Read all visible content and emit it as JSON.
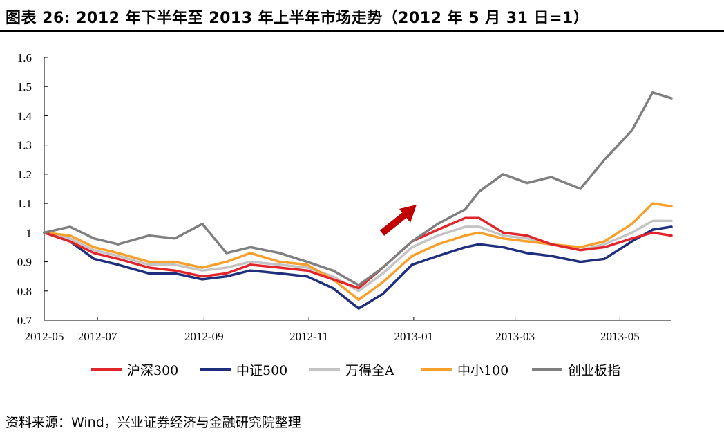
{
  "title": "图表 26: 2012 年下半年至 2013 年上半年市场走势（2012 年 5 月 31 日=1）",
  "source": "资料来源：Wind，兴业证券经济与金融研究院整理",
  "chart_data": {
    "type": "line",
    "ylim": [
      0.7,
      1.6
    ],
    "yticks": [
      "0.7",
      "0.8",
      "0.9",
      "1",
      "1.1",
      "1.2",
      "1.3",
      "1.4",
      "1.5",
      "1.6"
    ],
    "xticks": [
      "2012-05",
      "2012-07",
      "2012-09",
      "2012-11",
      "2013-01",
      "2013-03",
      "2013-05"
    ],
    "grid": false,
    "legend": "bottom",
    "annotation": "red-up-arrow",
    "series": [
      {
        "name": "沪深300",
        "color": "#e0262b",
        "points": [
          [
            "2012-05-31",
            1.0
          ],
          [
            "2012-06-15",
            0.97
          ],
          [
            "2012-06-29",
            0.93
          ],
          [
            "2012-07-13",
            0.91
          ],
          [
            "2012-07-31",
            0.88
          ],
          [
            "2012-08-15",
            0.87
          ],
          [
            "2012-08-31",
            0.85
          ],
          [
            "2012-09-14",
            0.86
          ],
          [
            "2012-09-28",
            0.89
          ],
          [
            "2012-10-15",
            0.88
          ],
          [
            "2012-10-31",
            0.87
          ],
          [
            "2012-11-15",
            0.84
          ],
          [
            "2012-11-30",
            0.81
          ],
          [
            "2012-12-14",
            0.88
          ],
          [
            "2012-12-31",
            0.97
          ],
          [
            "2013-01-15",
            1.01
          ],
          [
            "2013-01-31",
            1.05
          ],
          [
            "2013-02-08",
            1.05
          ],
          [
            "2013-02-22",
            1.0
          ],
          [
            "2013-03-08",
            0.99
          ],
          [
            "2013-03-22",
            0.96
          ],
          [
            "2013-04-08",
            0.94
          ],
          [
            "2013-04-22",
            0.95
          ],
          [
            "2013-05-08",
            0.98
          ],
          [
            "2013-05-20",
            1.0
          ],
          [
            "2013-05-31",
            0.99
          ]
        ]
      },
      {
        "name": "中证500",
        "color": "#1f2f7e",
        "points": [
          [
            "2012-05-31",
            1.0
          ],
          [
            "2012-06-15",
            0.97
          ],
          [
            "2012-06-29",
            0.91
          ],
          [
            "2012-07-13",
            0.89
          ],
          [
            "2012-07-31",
            0.86
          ],
          [
            "2012-08-15",
            0.86
          ],
          [
            "2012-08-31",
            0.84
          ],
          [
            "2012-09-14",
            0.85
          ],
          [
            "2012-09-28",
            0.87
          ],
          [
            "2012-10-15",
            0.86
          ],
          [
            "2012-10-31",
            0.85
          ],
          [
            "2012-11-15",
            0.81
          ],
          [
            "2012-11-30",
            0.74
          ],
          [
            "2012-12-14",
            0.79
          ],
          [
            "2012-12-31",
            0.89
          ],
          [
            "2013-01-15",
            0.92
          ],
          [
            "2013-01-31",
            0.95
          ],
          [
            "2013-02-08",
            0.96
          ],
          [
            "2013-02-22",
            0.95
          ],
          [
            "2013-03-08",
            0.93
          ],
          [
            "2013-03-22",
            0.92
          ],
          [
            "2013-04-08",
            0.9
          ],
          [
            "2013-04-22",
            0.91
          ],
          [
            "2013-05-08",
            0.97
          ],
          [
            "2013-05-20",
            1.01
          ],
          [
            "2013-05-31",
            1.02
          ]
        ]
      },
      {
        "name": "万得全A",
        "color": "#c4c4c4",
        "points": [
          [
            "2012-05-31",
            1.0
          ],
          [
            "2012-06-15",
            0.98
          ],
          [
            "2012-06-29",
            0.94
          ],
          [
            "2012-07-13",
            0.92
          ],
          [
            "2012-07-31",
            0.89
          ],
          [
            "2012-08-15",
            0.89
          ],
          [
            "2012-08-31",
            0.87
          ],
          [
            "2012-09-14",
            0.88
          ],
          [
            "2012-09-28",
            0.9
          ],
          [
            "2012-10-15",
            0.89
          ],
          [
            "2012-10-31",
            0.88
          ],
          [
            "2012-11-15",
            0.85
          ],
          [
            "2012-11-30",
            0.8
          ],
          [
            "2012-12-14",
            0.86
          ],
          [
            "2012-12-31",
            0.95
          ],
          [
            "2013-01-15",
            0.99
          ],
          [
            "2013-01-31",
            1.02
          ],
          [
            "2013-02-08",
            1.02
          ],
          [
            "2013-02-22",
            0.99
          ],
          [
            "2013-03-08",
            0.98
          ],
          [
            "2013-03-22",
            0.96
          ],
          [
            "2013-04-08",
            0.94
          ],
          [
            "2013-04-22",
            0.96
          ],
          [
            "2013-05-08",
            1.0
          ],
          [
            "2013-05-20",
            1.04
          ],
          [
            "2013-05-31",
            1.04
          ]
        ]
      },
      {
        "name": "中小100",
        "color": "#f8a02b",
        "points": [
          [
            "2012-05-31",
            1.0
          ],
          [
            "2012-06-15",
            0.99
          ],
          [
            "2012-06-29",
            0.95
          ],
          [
            "2012-07-13",
            0.93
          ],
          [
            "2012-07-31",
            0.9
          ],
          [
            "2012-08-15",
            0.9
          ],
          [
            "2012-08-31",
            0.88
          ],
          [
            "2012-09-14",
            0.9
          ],
          [
            "2012-09-28",
            0.93
          ],
          [
            "2012-10-15",
            0.9
          ],
          [
            "2012-10-31",
            0.89
          ],
          [
            "2012-11-15",
            0.84
          ],
          [
            "2012-11-30",
            0.77
          ],
          [
            "2012-12-14",
            0.83
          ],
          [
            "2012-12-31",
            0.92
          ],
          [
            "2013-01-15",
            0.96
          ],
          [
            "2013-01-31",
            0.99
          ],
          [
            "2013-02-08",
            1.0
          ],
          [
            "2013-02-22",
            0.98
          ],
          [
            "2013-03-08",
            0.97
          ],
          [
            "2013-03-22",
            0.96
          ],
          [
            "2013-04-08",
            0.95
          ],
          [
            "2013-04-22",
            0.97
          ],
          [
            "2013-05-08",
            1.03
          ],
          [
            "2013-05-20",
            1.1
          ],
          [
            "2013-05-31",
            1.09
          ]
        ]
      },
      {
        "name": "创业板指",
        "color": "#7f7f7f",
        "points": [
          [
            "2012-05-31",
            1.0
          ],
          [
            "2012-06-15",
            1.02
          ],
          [
            "2012-06-29",
            0.98
          ],
          [
            "2012-07-13",
            0.96
          ],
          [
            "2012-07-31",
            0.99
          ],
          [
            "2012-08-15",
            0.98
          ],
          [
            "2012-08-31",
            1.03
          ],
          [
            "2012-09-14",
            0.93
          ],
          [
            "2012-09-28",
            0.95
          ],
          [
            "2012-10-15",
            0.93
          ],
          [
            "2012-10-31",
            0.9
          ],
          [
            "2012-11-15",
            0.87
          ],
          [
            "2012-11-30",
            0.82
          ],
          [
            "2012-12-14",
            0.88
          ],
          [
            "2012-12-31",
            0.97
          ],
          [
            "2013-01-15",
            1.03
          ],
          [
            "2013-01-31",
            1.08
          ],
          [
            "2013-02-08",
            1.14
          ],
          [
            "2013-02-22",
            1.2
          ],
          [
            "2013-03-08",
            1.17
          ],
          [
            "2013-03-22",
            1.19
          ],
          [
            "2013-04-08",
            1.15
          ],
          [
            "2013-04-22",
            1.25
          ],
          [
            "2013-05-08",
            1.35
          ],
          [
            "2013-05-20",
            1.48
          ],
          [
            "2013-05-31",
            1.46
          ]
        ]
      }
    ]
  }
}
